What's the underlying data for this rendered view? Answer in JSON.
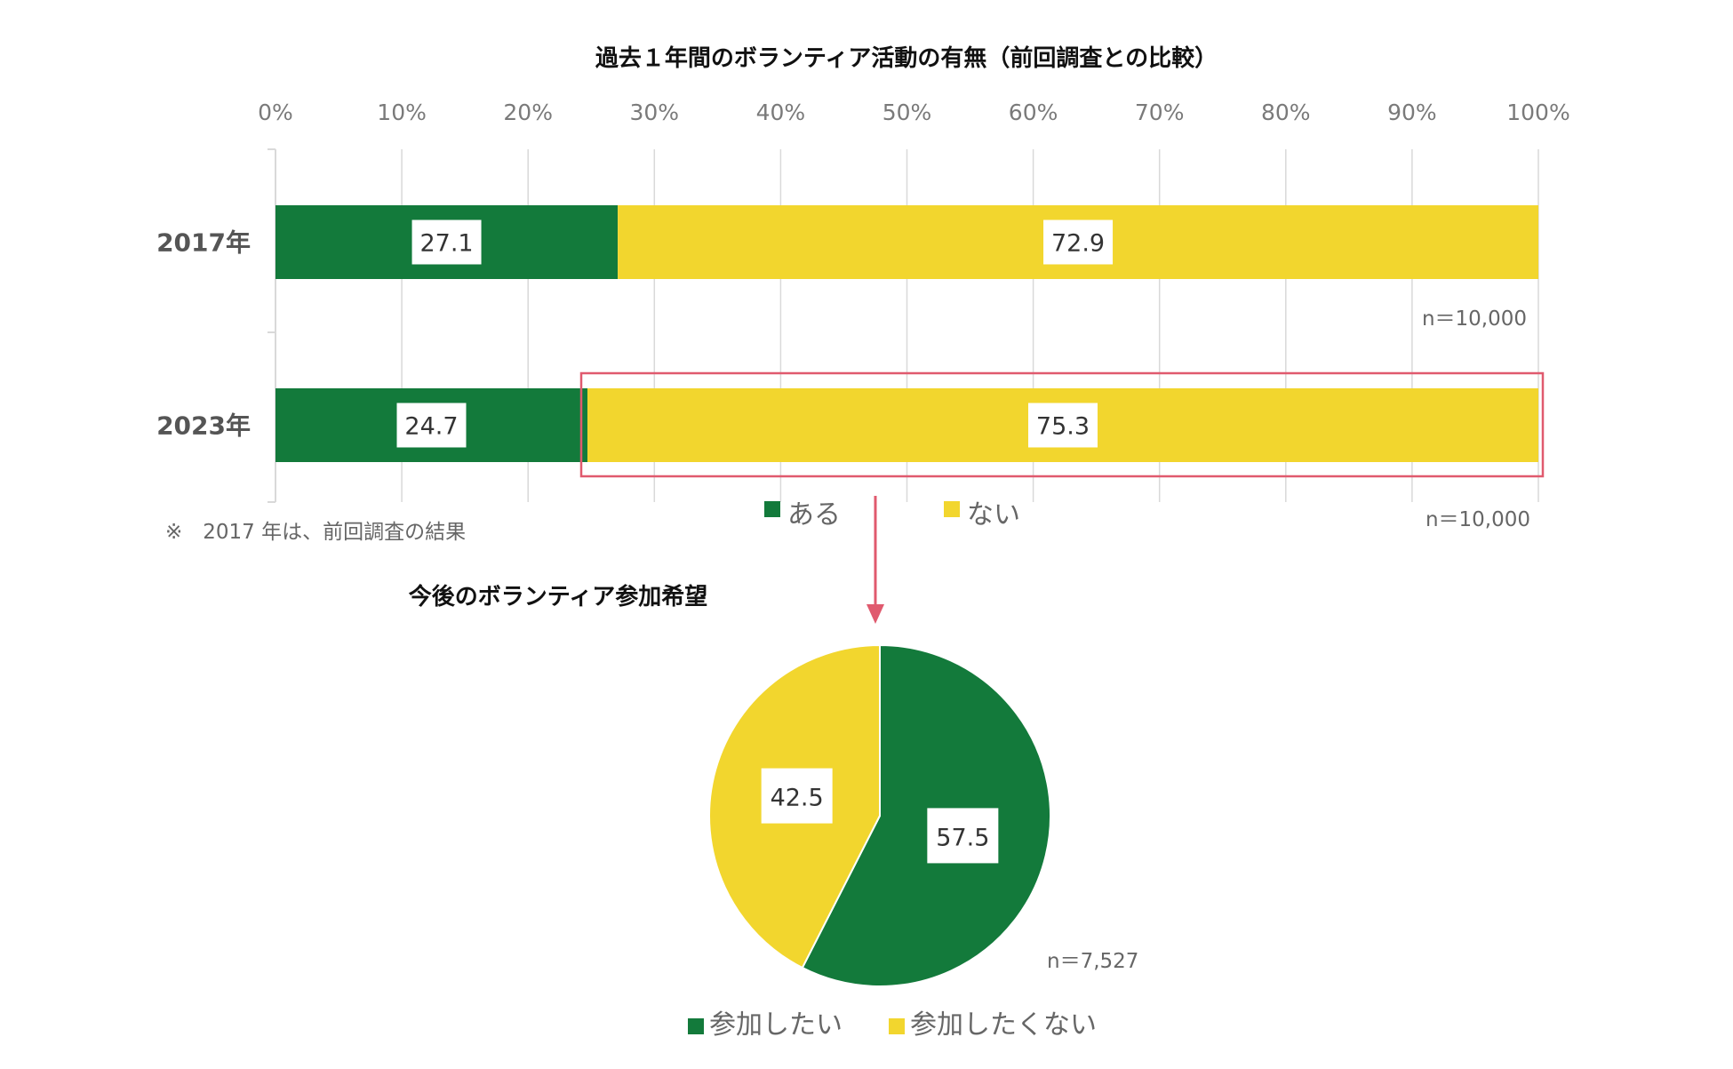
{
  "colors": {
    "green": "#137a3b",
    "yellow": "#f2d62e",
    "grid": "#d9d9d9",
    "highlight": "#e05a6e"
  },
  "chart_data": [
    {
      "type": "bar",
      "orientation": "horizontal-stacked",
      "title": "過去１年間のボランティア活動の有無（前回調査との比較）",
      "categories": [
        "2017年",
        "2023年"
      ],
      "series": [
        {
          "name": "ある",
          "values": [
            27.1,
            24.7
          ],
          "labels": [
            "27.1",
            "24.7"
          ]
        },
        {
          "name": "ない",
          "values": [
            72.9,
            75.3
          ],
          "labels": [
            "72.9",
            "75.3"
          ]
        }
      ],
      "xlim": [
        0,
        100
      ],
      "xticks": [
        "0%",
        "10%",
        "20%",
        "30%",
        "40%",
        "50%",
        "60%",
        "70%",
        "80%",
        "90%",
        "100%"
      ],
      "grid": true,
      "legend": "bottom",
      "sample_sizes": [
        "n＝10,000",
        "n＝10,000"
      ],
      "note": "※　2017 年は、前回調査の結果"
    },
    {
      "type": "pie",
      "title": "今後のボランティア参加希望",
      "series": [
        {
          "name": "参加したい",
          "value": 57.5,
          "label": "57.5"
        },
        {
          "name": "参加したくない",
          "value": 42.5,
          "label": "42.5"
        }
      ],
      "legend": "bottom",
      "sample_size": "n＝7,527"
    }
  ]
}
